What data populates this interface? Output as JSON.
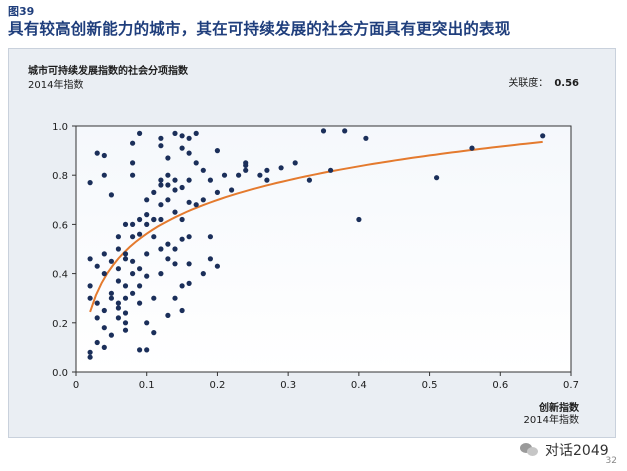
{
  "figure_label": "图39",
  "headline": "具有较高创新能力的城市，其在可持续发展的社会方面具有更突出的表现",
  "watermark": "对话2049",
  "page_number": "32",
  "colors": {
    "headline": "#1f3e7c",
    "point": "#1b2f5a",
    "trend": "#e47a2e"
  },
  "chart_data": {
    "type": "scatter",
    "title": "城市可持续发展指数的社会分项指数",
    "subtitle": "2014年指数",
    "correlation_label": "关联度：",
    "correlation_value": "0.56",
    "xlabel": "创新指数",
    "xlabel_sub": "2014年指数",
    "xlim": [
      0,
      0.7
    ],
    "ylim": [
      0,
      1.0
    ],
    "x_ticks": [
      "0",
      "0.1",
      "0.2",
      "0.3",
      "0.4",
      "0.5",
      "0.6",
      "0.7"
    ],
    "y_ticks": [
      "0.0",
      "0.2",
      "0.4",
      "0.6",
      "0.8",
      "1.0"
    ],
    "grid": false,
    "trendline": "logarithmic",
    "points": [
      [
        0.02,
        0.08
      ],
      [
        0.02,
        0.06
      ],
      [
        0.02,
        0.77
      ],
      [
        0.03,
        0.89
      ],
      [
        0.04,
        0.88
      ],
      [
        0.03,
        0.12
      ],
      [
        0.04,
        0.1
      ],
      [
        0.02,
        0.35
      ],
      [
        0.02,
        0.3
      ],
      [
        0.03,
        0.28
      ],
      [
        0.03,
        0.43
      ],
      [
        0.02,
        0.46
      ],
      [
        0.04,
        0.8
      ],
      [
        0.04,
        0.4
      ],
      [
        0.03,
        0.22
      ],
      [
        0.04,
        0.18
      ],
      [
        0.04,
        0.25
      ],
      [
        0.05,
        0.45
      ],
      [
        0.05,
        0.32
      ],
      [
        0.05,
        0.15
      ],
      [
        0.05,
        0.3
      ],
      [
        0.05,
        0.72
      ],
      [
        0.04,
        0.48
      ],
      [
        0.06,
        0.42
      ],
      [
        0.06,
        0.28
      ],
      [
        0.06,
        0.5
      ],
      [
        0.06,
        0.37
      ],
      [
        0.06,
        0.55
      ],
      [
        0.06,
        0.22
      ],
      [
        0.06,
        0.26
      ],
      [
        0.07,
        0.46
      ],
      [
        0.07,
        0.35
      ],
      [
        0.07,
        0.3
      ],
      [
        0.07,
        0.6
      ],
      [
        0.07,
        0.48
      ],
      [
        0.07,
        0.2
      ],
      [
        0.07,
        0.17
      ],
      [
        0.07,
        0.24
      ],
      [
        0.08,
        0.85
      ],
      [
        0.08,
        0.93
      ],
      [
        0.08,
        0.8
      ],
      [
        0.08,
        0.6
      ],
      [
        0.08,
        0.55
      ],
      [
        0.08,
        0.45
      ],
      [
        0.08,
        0.4
      ],
      [
        0.08,
        0.32
      ],
      [
        0.09,
        0.97
      ],
      [
        0.09,
        0.56
      ],
      [
        0.09,
        0.62
      ],
      [
        0.09,
        0.42
      ],
      [
        0.09,
        0.35
      ],
      [
        0.09,
        0.28
      ],
      [
        0.09,
        0.09
      ],
      [
        0.1,
        0.64
      ],
      [
        0.1,
        0.6
      ],
      [
        0.1,
        0.48
      ],
      [
        0.1,
        0.39
      ],
      [
        0.1,
        0.7
      ],
      [
        0.1,
        0.2
      ],
      [
        0.1,
        0.09
      ],
      [
        0.11,
        0.62
      ],
      [
        0.11,
        0.73
      ],
      [
        0.11,
        0.62
      ],
      [
        0.11,
        0.55
      ],
      [
        0.11,
        0.3
      ],
      [
        0.11,
        0.16
      ],
      [
        0.12,
        0.95
      ],
      [
        0.12,
        0.92
      ],
      [
        0.12,
        0.78
      ],
      [
        0.12,
        0.76
      ],
      [
        0.12,
        0.68
      ],
      [
        0.12,
        0.62
      ],
      [
        0.12,
        0.5
      ],
      [
        0.12,
        0.4
      ],
      [
        0.13,
        0.87
      ],
      [
        0.13,
        0.8
      ],
      [
        0.13,
        0.76
      ],
      [
        0.13,
        0.7
      ],
      [
        0.13,
        0.52
      ],
      [
        0.13,
        0.46
      ],
      [
        0.13,
        0.23
      ],
      [
        0.14,
        0.97
      ],
      [
        0.14,
        0.74
      ],
      [
        0.14,
        0.78
      ],
      [
        0.14,
        0.65
      ],
      [
        0.14,
        0.5
      ],
      [
        0.14,
        0.44
      ],
      [
        0.14,
        0.3
      ],
      [
        0.15,
        0.96
      ],
      [
        0.15,
        0.91
      ],
      [
        0.15,
        0.75
      ],
      [
        0.15,
        0.62
      ],
      [
        0.15,
        0.54
      ],
      [
        0.15,
        0.35
      ],
      [
        0.15,
        0.25
      ],
      [
        0.16,
        0.95
      ],
      [
        0.16,
        0.89
      ],
      [
        0.16,
        0.78
      ],
      [
        0.16,
        0.69
      ],
      [
        0.16,
        0.55
      ],
      [
        0.16,
        0.44
      ],
      [
        0.16,
        0.36
      ],
      [
        0.17,
        0.97
      ],
      [
        0.17,
        0.85
      ],
      [
        0.17,
        0.68
      ],
      [
        0.18,
        0.82
      ],
      [
        0.18,
        0.7
      ],
      [
        0.18,
        0.4
      ],
      [
        0.19,
        0.78
      ],
      [
        0.19,
        0.55
      ],
      [
        0.19,
        0.46
      ],
      [
        0.2,
        0.9
      ],
      [
        0.2,
        0.73
      ],
      [
        0.2,
        0.43
      ],
      [
        0.21,
        0.8
      ],
      [
        0.22,
        0.74
      ],
      [
        0.23,
        0.8
      ],
      [
        0.24,
        0.82
      ],
      [
        0.24,
        0.84
      ],
      [
        0.24,
        0.85
      ],
      [
        0.26,
        0.8
      ],
      [
        0.27,
        0.82
      ],
      [
        0.27,
        0.78
      ],
      [
        0.29,
        0.83
      ],
      [
        0.31,
        0.85
      ],
      [
        0.33,
        0.78
      ],
      [
        0.35,
        0.98
      ],
      [
        0.36,
        0.82
      ],
      [
        0.38,
        0.98
      ],
      [
        0.4,
        0.62
      ],
      [
        0.41,
        0.95
      ],
      [
        0.51,
        0.79
      ],
      [
        0.56,
        0.91
      ],
      [
        0.66,
        0.96
      ]
    ]
  }
}
